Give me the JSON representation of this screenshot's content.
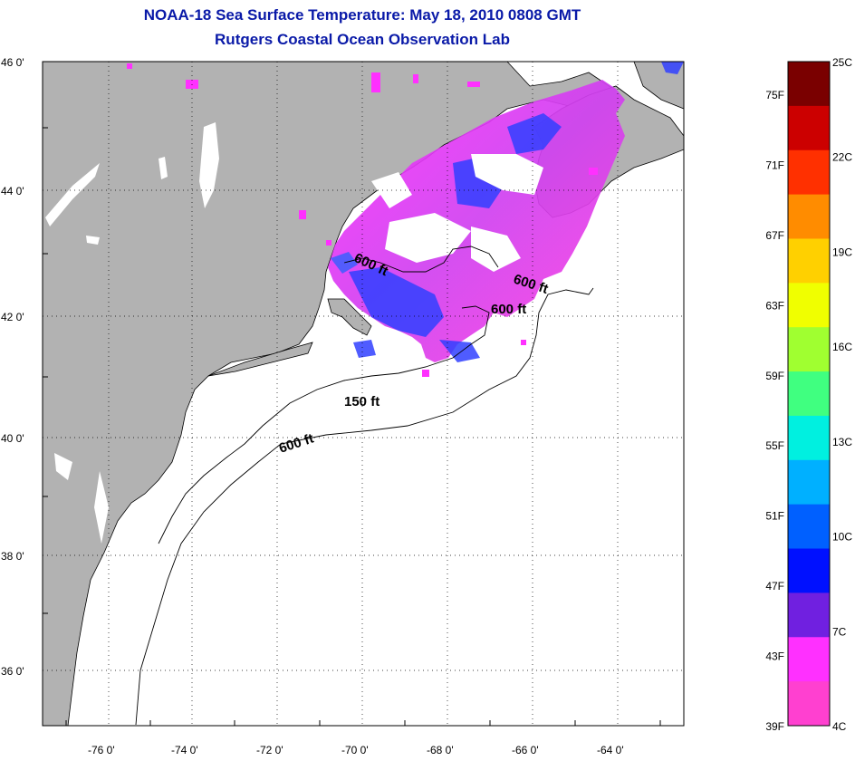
{
  "header": {
    "title": "NOAA-18 Sea Surface Temperature:  May 18, 2010 0808 GMT",
    "subtitle": "Rutgers Coastal Ocean Observation Lab"
  },
  "map": {
    "lat_labels": [
      "46 0'",
      "44 0'",
      "42 0'",
      "40 0'",
      "38 0'",
      "36 0'"
    ],
    "lon_labels": [
      "-76 0'",
      "-74 0'",
      "-72 0'",
      "-70 0'",
      "-68 0'",
      "-66 0'",
      "-64 0'"
    ],
    "depth_labels": [
      "600 ft",
      "600 ft",
      "600 ft",
      "150 ft",
      "600 ft"
    ]
  },
  "colorbar": {
    "fahrenheit_labels": [
      "75F",
      "71F",
      "67F",
      "63F",
      "59F",
      "55F",
      "51F",
      "47F",
      "43F",
      "39F"
    ],
    "celsius_labels": [
      "25C",
      "22C",
      "19C",
      "16C",
      "13C",
      "10C",
      "7C",
      "4C"
    ],
    "colors": [
      "#7a0000",
      "#cc0000",
      "#ff3000",
      "#ff8c00",
      "#ffd000",
      "#f0ff00",
      "#a0ff30",
      "#40ff80",
      "#00f0e0",
      "#00b0ff",
      "#0060ff",
      "#0010ff",
      "#7020e0",
      "#ff30ff",
      "#ff40d0"
    ]
  },
  "palette": {
    "land": "#b2b2b2",
    "ocean": "#ffffff",
    "sst_cold": "#ff30ff",
    "sst_blue": "#3040ff",
    "title_color": "#0a1aa8"
  }
}
